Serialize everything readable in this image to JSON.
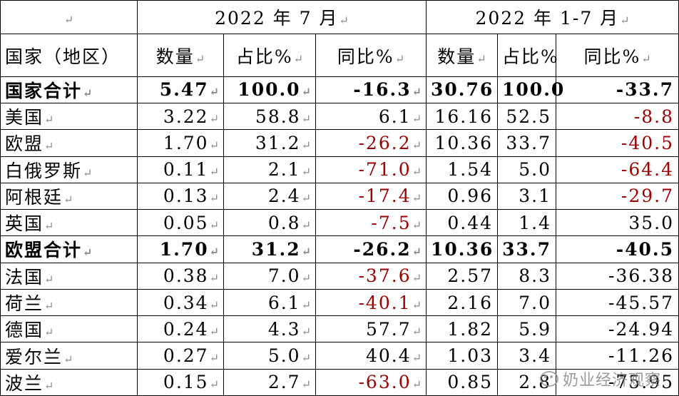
{
  "header": {
    "corner_mark": "↵",
    "period_1": "2022 年 7 月",
    "period_2": "2022 年 1-7 月",
    "col_country": "国家（地区）",
    "col_qty": "数量",
    "col_share": "占比%",
    "col_yoy": "同比%"
  },
  "colors": {
    "negative_red": "#a00000",
    "grid": "#000000"
  },
  "rows": [
    {
      "name": "国家合计",
      "bold": true,
      "m_qty": "5.47",
      "m_share": "100.0",
      "m_yoy": "-16.3",
      "m_yoy_red": false,
      "y_qty": "30.76",
      "y_share": "100.0",
      "y_yoy": "-33.7",
      "y_yoy_red": false
    },
    {
      "name": "美国",
      "bold": false,
      "m_qty": "3.22",
      "m_share": "58.8",
      "m_yoy": "6.1",
      "m_yoy_red": false,
      "y_qty": "16.16",
      "y_share": "52.5",
      "y_yoy": "-8.8",
      "y_yoy_red": true
    },
    {
      "name": "欧盟",
      "bold": false,
      "m_qty": "1.70",
      "m_share": "31.2",
      "m_yoy": "-26.2",
      "m_yoy_red": true,
      "y_qty": "10.36",
      "y_share": "33.7",
      "y_yoy": "-40.5",
      "y_yoy_red": true
    },
    {
      "name": "白俄罗斯",
      "bold": false,
      "m_qty": "0.11",
      "m_share": "2.1",
      "m_yoy": "-71.0",
      "m_yoy_red": true,
      "y_qty": "1.54",
      "y_share": "5.0",
      "y_yoy": "-64.4",
      "y_yoy_red": true
    },
    {
      "name": "阿根廷",
      "bold": false,
      "m_qty": "0.13",
      "m_share": "2.4",
      "m_yoy": "-17.4",
      "m_yoy_red": true,
      "y_qty": "0.96",
      "y_share": "3.1",
      "y_yoy": "-29.7",
      "y_yoy_red": true
    },
    {
      "name": "英国",
      "bold": false,
      "m_qty": "0.05",
      "m_share": "0.8",
      "m_yoy": "-7.5",
      "m_yoy_red": true,
      "y_qty": "0.44",
      "y_share": "1.4",
      "y_yoy": "35.0",
      "y_yoy_red": false
    },
    {
      "name": "欧盟合计",
      "bold": true,
      "m_qty": "1.70",
      "m_share": "31.2",
      "m_yoy": "-26.2",
      "m_yoy_red": false,
      "y_qty": "10.36",
      "y_share": "33.7",
      "y_yoy": "-40.5",
      "y_yoy_red": false
    },
    {
      "name": "法国",
      "bold": false,
      "m_qty": "0.38",
      "m_share": "7.0",
      "m_yoy": "-37.6",
      "m_yoy_red": true,
      "y_qty": "2.57",
      "y_share": "8.3",
      "y_yoy": "-36.38",
      "y_yoy_red": false
    },
    {
      "name": "荷兰",
      "bold": false,
      "m_qty": "0.34",
      "m_share": "6.1",
      "m_yoy": "-40.1",
      "m_yoy_red": true,
      "y_qty": "2.16",
      "y_share": "7.0",
      "y_yoy": "-45.57",
      "y_yoy_red": false
    },
    {
      "name": "德国",
      "bold": false,
      "m_qty": "0.24",
      "m_share": "4.3",
      "m_yoy": "57.7",
      "m_yoy_red": false,
      "y_qty": "1.82",
      "y_share": "5.9",
      "y_yoy": "-24.94",
      "y_yoy_red": false
    },
    {
      "name": "爱尔兰",
      "bold": false,
      "m_qty": "0.27",
      "m_share": "5.0",
      "m_yoy": "40.4",
      "m_yoy_red": false,
      "y_qty": "1.03",
      "y_share": "3.4",
      "y_yoy": "-11.26",
      "y_yoy_red": false
    },
    {
      "name": "波兰",
      "bold": false,
      "m_qty": "0.15",
      "m_share": "2.7",
      "m_yoy": "-63.0",
      "m_yoy_red": true,
      "y_qty": "0.85",
      "y_share": "2.8",
      "y_yoy": "-75.95",
      "y_yoy_red": false
    }
  ],
  "watermark": {
    "text": "奶业经济观察"
  }
}
